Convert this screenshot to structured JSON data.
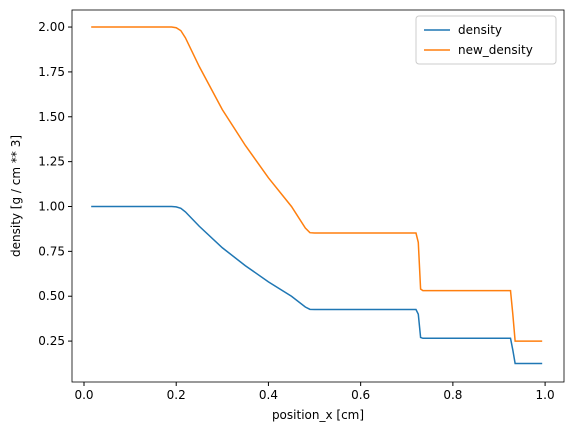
{
  "chart_data": {
    "type": "line",
    "xlabel": "position_x [cm]",
    "ylabel": "density [g / cm ** 3]",
    "x": [
      0.0156,
      0.05,
      0.1,
      0.15,
      0.19,
      0.2,
      0.21,
      0.22,
      0.25,
      0.3,
      0.35,
      0.4,
      0.45,
      0.48,
      0.49,
      0.5,
      0.6,
      0.7,
      0.72,
      0.725,
      0.73,
      0.735,
      0.8,
      0.9,
      0.925,
      0.93,
      0.935,
      0.9937
    ],
    "series": [
      {
        "name": "density",
        "color": "#1f77b4",
        "values": [
          1.0,
          1.0,
          1.0,
          1.0,
          1.0,
          0.998,
          0.99,
          0.97,
          0.89,
          0.77,
          0.67,
          0.58,
          0.5,
          0.44,
          0.427,
          0.426,
          0.426,
          0.426,
          0.426,
          0.4,
          0.27,
          0.2656,
          0.2656,
          0.2656,
          0.2656,
          0.2,
          0.125,
          0.125
        ]
      },
      {
        "name": "new_density",
        "color": "#ff7f0e",
        "values": [
          2.0,
          2.0,
          2.0,
          2.0,
          2.0,
          1.996,
          1.98,
          1.94,
          1.78,
          1.54,
          1.34,
          1.16,
          1.0,
          0.88,
          0.854,
          0.852,
          0.852,
          0.852,
          0.852,
          0.8,
          0.54,
          0.531,
          0.531,
          0.531,
          0.531,
          0.4,
          0.25,
          0.25
        ]
      }
    ],
    "xlim": [
      -0.026,
      1.041
    ],
    "ylim": [
      0.022,
      2.095
    ],
    "xticks": [
      {
        "value": 0,
        "label": "0.0"
      },
      0.2,
      0.4,
      0.6,
      0.8,
      {
        "value": 1,
        "label": "1.0"
      }
    ],
    "yticks": [
      0.25,
      {
        "value": 0.5,
        "label": "0.50"
      },
      0.75,
      {
        "value": 1,
        "label": "1.00"
      },
      1.25,
      {
        "value": 1.5,
        "label": "1.50"
      },
      1.75,
      {
        "value": 2,
        "label": "2.00"
      }
    ],
    "legend": "upper right"
  }
}
